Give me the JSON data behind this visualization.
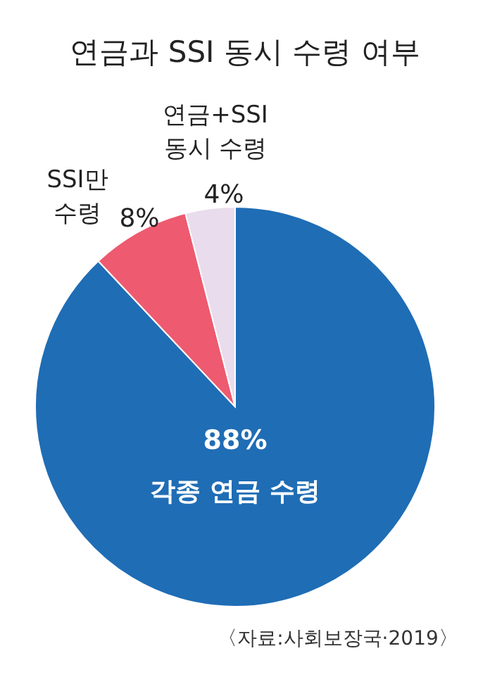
{
  "chart_data": {
    "type": "pie",
    "title": "연금과 SSI 동시 수령 여부",
    "categories": [
      "각종 연금 수령",
      "SSI만 수령",
      "연금+SSI 동시 수령"
    ],
    "values": [
      88,
      8,
      4
    ],
    "value_labels": [
      "88%",
      "8%",
      "4%"
    ],
    "colors": [
      "#1f6db5",
      "#ee5a6f",
      "#e9dced"
    ],
    "annotations": [
      "〈자료:사회보장국·2019〉"
    ]
  }
}
